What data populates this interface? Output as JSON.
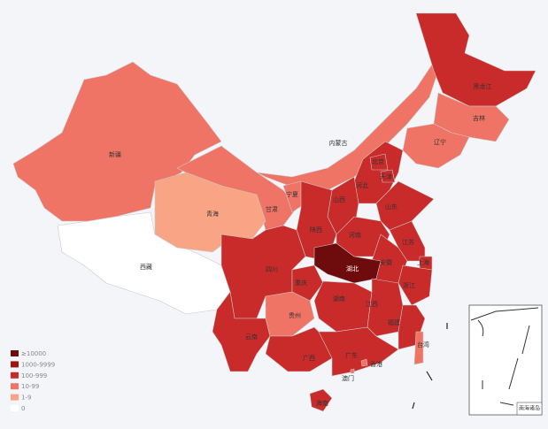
{
  "map": {
    "legend": [
      {
        "label": "≥10000",
        "color": "#6e0b0d"
      },
      {
        "label": "1000-9999",
        "color": "#9e1414"
      },
      {
        "label": "100-999",
        "color": "#c92a2a"
      },
      {
        "label": "10-99",
        "color": "#f07466"
      },
      {
        "label": "1-9",
        "color": "#f9a585"
      },
      {
        "label": "0",
        "color": "#ffffff"
      }
    ],
    "provinces": [
      {
        "name": "新疆",
        "level": 3
      },
      {
        "name": "西藏",
        "level": 5
      },
      {
        "name": "内蒙古",
        "level": 3
      },
      {
        "name": "甘肃",
        "level": 3
      },
      {
        "name": "青海",
        "level": 4
      },
      {
        "name": "黑龙江",
        "level": 2
      },
      {
        "name": "吉林",
        "level": 3
      },
      {
        "name": "辽宁",
        "level": 3
      },
      {
        "name": "河北",
        "level": 2
      },
      {
        "name": "北京",
        "level": 2
      },
      {
        "name": "天津",
        "level": 2
      },
      {
        "name": "山西",
        "level": 2
      },
      {
        "name": "宁夏",
        "level": 3
      },
      {
        "name": "陕西",
        "level": 2
      },
      {
        "name": "山东",
        "level": 2
      },
      {
        "name": "河南",
        "level": 2
      },
      {
        "name": "江苏",
        "level": 2
      },
      {
        "name": "安徽",
        "level": 2
      },
      {
        "name": "上海",
        "level": 2
      },
      {
        "name": "浙江",
        "level": 2
      },
      {
        "name": "四川",
        "level": 2
      },
      {
        "name": "湖北",
        "level": 0
      },
      {
        "name": "重庆",
        "level": 2
      },
      {
        "name": "贵州",
        "level": 3
      },
      {
        "name": "湖南",
        "level": 2
      },
      {
        "name": "江西",
        "level": 2
      },
      {
        "name": "福建",
        "level": 2
      },
      {
        "name": "云南",
        "level": 2
      },
      {
        "name": "广西",
        "level": 2
      },
      {
        "name": "广东",
        "level": 2
      },
      {
        "name": "香港",
        "level": 3
      },
      {
        "name": "澳门",
        "level": 3
      },
      {
        "name": "海南",
        "level": 2
      },
      {
        "name": "台湾",
        "level": 3
      }
    ],
    "inset_label": "南海诸岛"
  }
}
